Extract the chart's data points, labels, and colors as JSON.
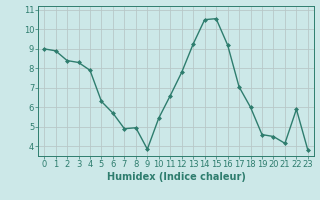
{
  "x": [
    0,
    1,
    2,
    3,
    4,
    5,
    6,
    7,
    8,
    9,
    10,
    11,
    12,
    13,
    14,
    15,
    16,
    17,
    18,
    19,
    20,
    21,
    22,
    23
  ],
  "y": [
    9.0,
    8.9,
    8.4,
    8.3,
    7.9,
    6.3,
    5.7,
    4.9,
    4.95,
    3.85,
    5.45,
    6.6,
    7.8,
    9.25,
    10.5,
    10.55,
    9.2,
    7.05,
    6.0,
    4.6,
    4.5,
    4.15,
    5.9,
    3.8
  ],
  "line_color": "#2e7d6e",
  "marker": "D",
  "marker_size": 2.0,
  "bg_color": "#cce8e8",
  "grid_color": "#b8c8c8",
  "xlabel": "Humidex (Indice chaleur)",
  "xlim": [
    -0.5,
    23.5
  ],
  "ylim": [
    3.5,
    11.2
  ],
  "yticks": [
    4,
    5,
    6,
    7,
    8,
    9,
    10,
    11
  ],
  "xticks": [
    0,
    1,
    2,
    3,
    4,
    5,
    6,
    7,
    8,
    9,
    10,
    11,
    12,
    13,
    14,
    15,
    16,
    17,
    18,
    19,
    20,
    21,
    22,
    23
  ],
  "xlabel_fontsize": 7,
  "tick_fontsize": 6,
  "line_width": 1.0
}
